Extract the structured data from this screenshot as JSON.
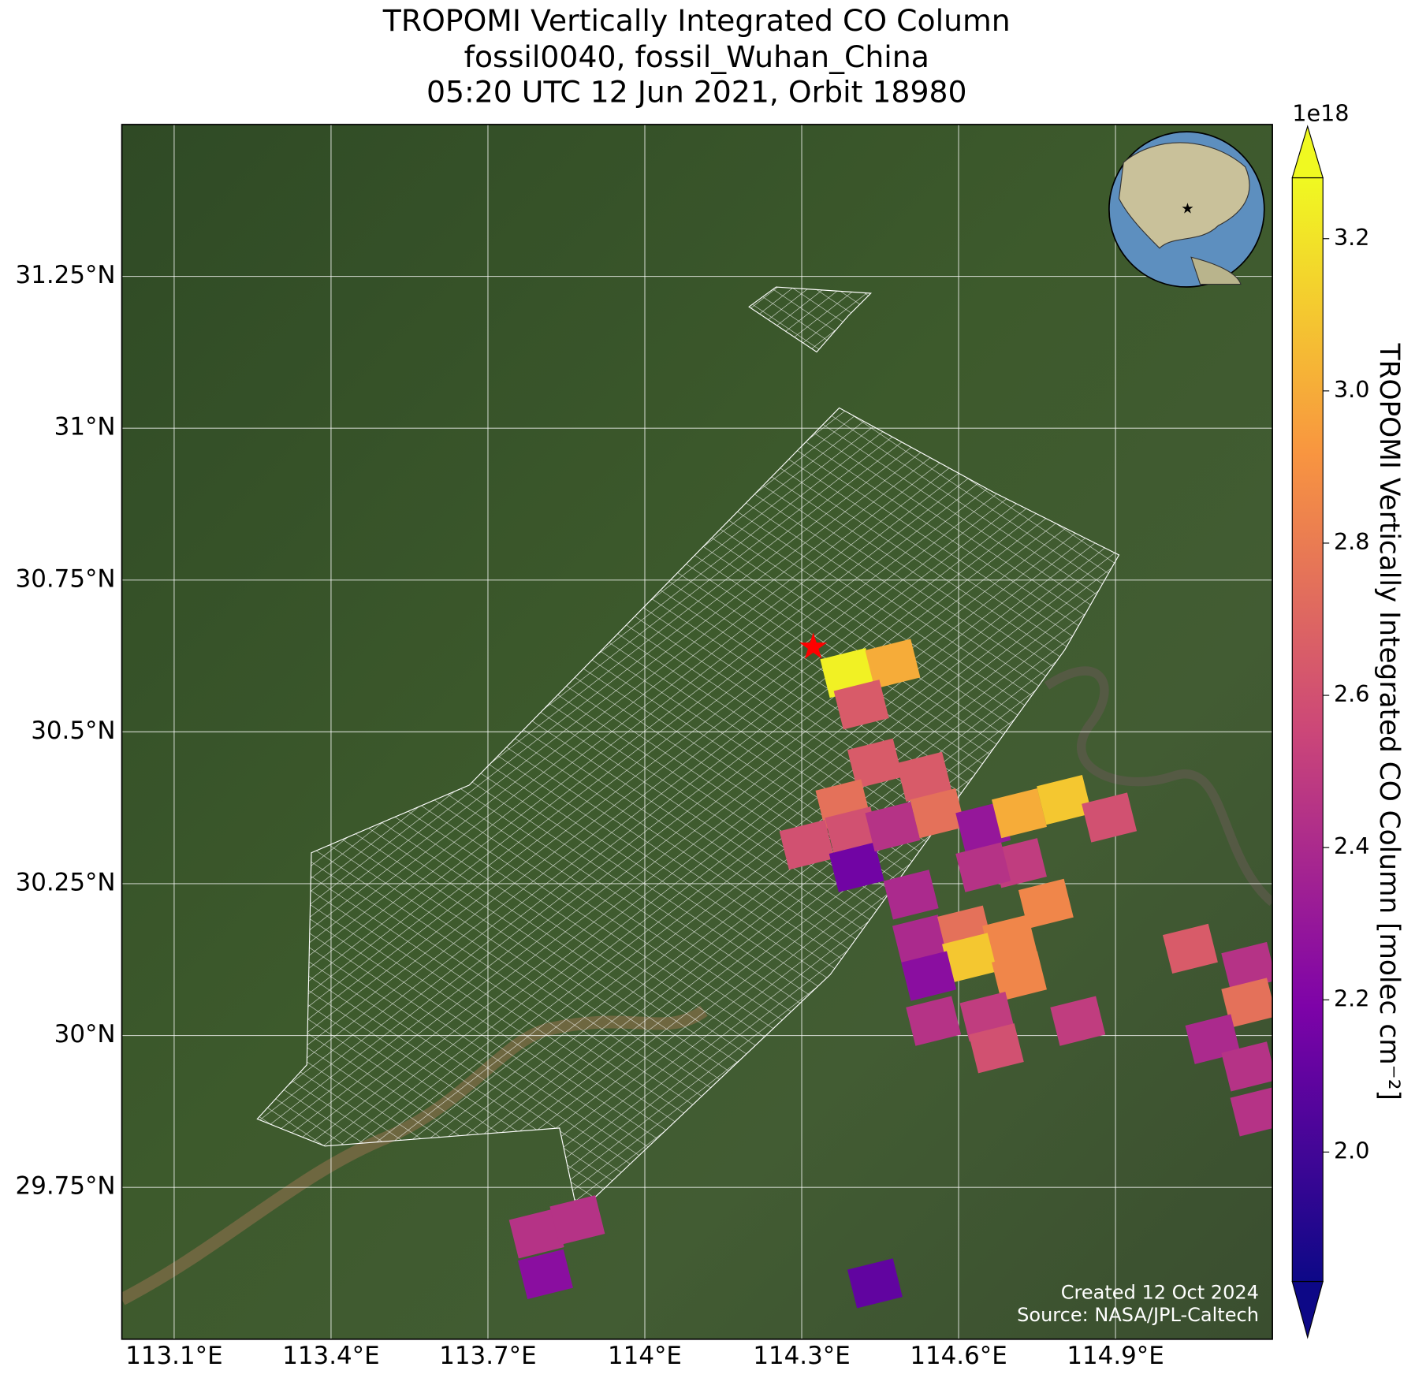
{
  "title": [
    "TROPOMI Vertically Integrated CO Column",
    "fossil0040, fossil_Wuhan_China",
    "05:20 UTC 12 Jun 2021, Orbit 18980"
  ],
  "map": {
    "type": "map",
    "xlim": [
      113.0,
      115.2
    ],
    "ylim": [
      29.5,
      31.5
    ],
    "xticks": [
      {
        "value": 113.1,
        "label": "113.1°E"
      },
      {
        "value": 113.4,
        "label": "113.4°E"
      },
      {
        "value": 113.7,
        "label": "113.7°E"
      },
      {
        "value": 114.0,
        "label": "114°E"
      },
      {
        "value": 114.3,
        "label": "114.3°E"
      },
      {
        "value": 114.6,
        "label": "114.6°E"
      },
      {
        "value": 114.9,
        "label": "114.9°E"
      }
    ],
    "yticks": [
      {
        "value": 29.75,
        "label": "29.75°N"
      },
      {
        "value": 30.0,
        "label": "30°N"
      },
      {
        "value": 30.25,
        "label": "30.25°N"
      },
      {
        "value": 30.5,
        "label": "30.5°N"
      },
      {
        "value": 30.75,
        "label": "30.75°N"
      },
      {
        "value": 31.0,
        "label": "31°N"
      },
      {
        "value": 31.25,
        "label": "31.25°N"
      }
    ],
    "grid": true,
    "colormap": "plasma",
    "pixels": {
      "lon": [
        114.388,
        114.474,
        114.414,
        114.44,
        114.379,
        114.534,
        114.31,
        114.397,
        114.405,
        114.474,
        114.56,
        114.509,
        114.647,
        114.716,
        114.802,
        114.888,
        114.716,
        114.647,
        114.767,
        114.526,
        114.612,
        114.698,
        114.621,
        114.543,
        114.716,
        114.552,
        114.655,
        114.672,
        114.828,
        115.043,
        115.155,
        115.155,
        115.086,
        115.155,
        115.172,
        113.793,
        113.871,
        113.81,
        114.44
      ],
      "lat": [
        30.597,
        30.612,
        30.545,
        30.448,
        30.381,
        30.426,
        30.314,
        30.336,
        30.277,
        30.344,
        30.366,
        30.232,
        30.344,
        30.366,
        30.388,
        30.359,
        30.284,
        30.277,
        30.217,
        30.158,
        30.173,
        30.158,
        30.128,
        30.098,
        30.098,
        30.024,
        30.031,
        29.979,
        30.024,
        30.143,
        30.113,
        30.054,
        29.994,
        29.949,
        29.875,
        29.674,
        29.696,
        29.607,
        29.592
      ],
      "values": [
        3.25,
        3.0,
        2.65,
        2.65,
        2.75,
        2.65,
        2.6,
        2.6,
        2.15,
        2.45,
        2.75,
        2.4,
        2.3,
        3.0,
        3.1,
        2.6,
        2.5,
        2.45,
        2.85,
        2.4,
        2.75,
        2.85,
        3.1,
        2.25,
        2.85,
        2.45,
        2.5,
        2.6,
        2.5,
        2.65,
        2.45,
        2.75,
        2.4,
        2.45,
        2.45,
        2.45,
        2.45,
        2.25,
        2.1
      ]
    },
    "source_marker": {
      "lon": 114.322,
      "lat": 30.637,
      "color": "#ff0000"
    }
  },
  "colorbar": {
    "label": "TROPOMI Vertically Integrated CO Column [molec cm⁻²]",
    "exponent": "1e18",
    "clim": [
      1.83,
      3.28
    ],
    "ticks": [
      {
        "value": 2.0,
        "label": "2.0"
      },
      2.2,
      2.4,
      2.6,
      2.8,
      {
        "value": 3.0,
        "label": "3.0"
      },
      3.2
    ],
    "extend": "both"
  },
  "credits": [
    "Created 12 Oct 2024",
    "Source: NASA/JPL-Caltech"
  ]
}
